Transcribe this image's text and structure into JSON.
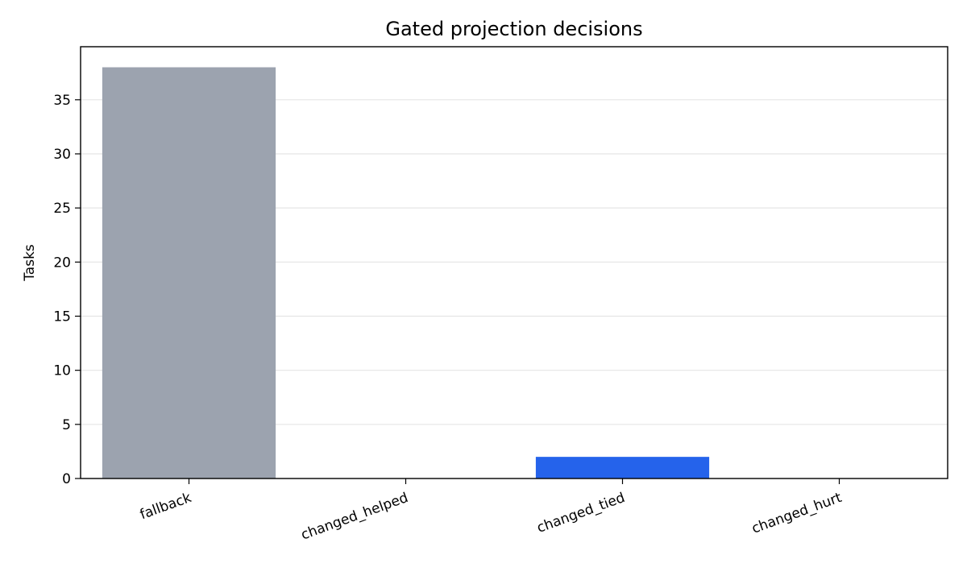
{
  "chart_data": {
    "type": "bar",
    "title": "Gated projection decisions",
    "xlabel": "",
    "ylabel": "Tasks",
    "categories": [
      "fallback",
      "changed_helped",
      "changed_tied",
      "changed_hurt"
    ],
    "values": [
      38,
      0,
      2,
      0
    ],
    "bar_colors": [
      "#9ca3af",
      "#9ca3af",
      "#2563eb",
      "#9ca3af"
    ],
    "ylim": [
      0,
      39.9
    ],
    "yticks": [
      0,
      5,
      10,
      15,
      20,
      25,
      30,
      35
    ],
    "grid": "y",
    "legend": "none"
  }
}
